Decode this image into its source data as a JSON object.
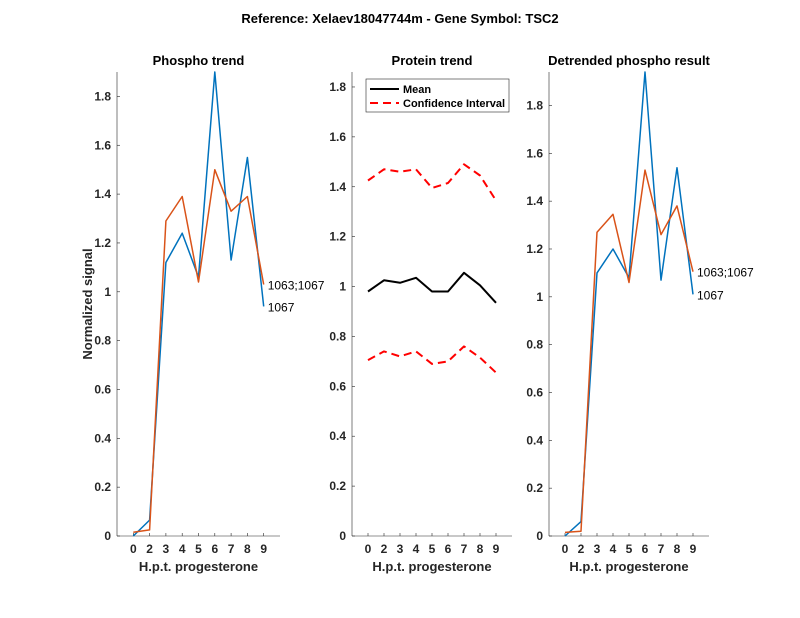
{
  "figure_title": "Reference:  Xelaev18047744m - Gene Symbol:  TSC2",
  "colors": {
    "blue": "#0072BD",
    "orange": "#D95319",
    "mean": "#000000",
    "ci": "#FF0000",
    "axis": "#262626"
  },
  "chart_data": [
    {
      "type": "line",
      "title": "Phospho trend",
      "xlabel": "H.p.t. progesterone",
      "ylabel": "Normalized signal",
      "categories": [
        "0",
        "2",
        "3",
        "4",
        "5",
        "6",
        "7",
        "8",
        "9"
      ],
      "ylim": [
        0,
        1.9
      ],
      "yticks": [
        "0",
        "0.2",
        "0.4",
        "0.6",
        "0.8",
        "1",
        "1.2",
        "1.4",
        "1.6",
        "1.8"
      ],
      "grid": false,
      "series": [
        {
          "name": "1067",
          "color": "blue",
          "values": [
            0,
            0.065,
            1.12,
            1.24,
            1.06,
            1.9,
            1.13,
            1.55,
            0.94
          ]
        },
        {
          "name": "1063;1067",
          "color": "orange",
          "values": [
            0.015,
            0.025,
            1.29,
            1.39,
            1.04,
            1.5,
            1.33,
            1.39,
            1.03
          ]
        }
      ]
    },
    {
      "type": "line",
      "title": "Protein trend",
      "xlabel": "H.p.t. progesterone",
      "ylabel": "",
      "categories": [
        "0",
        "2",
        "3",
        "4",
        "5",
        "6",
        "7",
        "8",
        "9"
      ],
      "ylim": [
        0,
        1.86
      ],
      "yticks": [
        "0",
        "0.2",
        "0.4",
        "0.6",
        "0.8",
        "1",
        "1.2",
        "1.4",
        "1.6",
        "1.8"
      ],
      "grid": false,
      "legend": {
        "placement": "top-left",
        "entries": [
          "Mean",
          "Confidence Interval"
        ]
      },
      "series": [
        {
          "name": "Mean",
          "color": "mean",
          "style": "solid",
          "values": [
            0.98,
            1.025,
            1.015,
            1.035,
            0.98,
            0.98,
            1.055,
            1.005,
            0.935
          ]
        },
        {
          "name": "Confidence Interval",
          "color": "ci",
          "style": "dashed",
          "values": [
            1.425,
            1.47,
            1.46,
            1.47,
            1.395,
            1.415,
            1.49,
            1.445,
            1.345
          ]
        },
        {
          "name": "Confidence Interval",
          "color": "ci",
          "style": "dashed",
          "legend": false,
          "values": [
            0.705,
            0.74,
            0.72,
            0.74,
            0.69,
            0.7,
            0.76,
            0.715,
            0.655
          ]
        }
      ]
    },
    {
      "type": "line",
      "title": "Detrended phospho result",
      "xlabel": "H.p.t. progesterone",
      "ylabel": "",
      "categories": [
        "0",
        "2",
        "3",
        "4",
        "5",
        "6",
        "7",
        "8",
        "9"
      ],
      "ylim": [
        0,
        1.94
      ],
      "yticks": [
        "0",
        "0.2",
        "0.4",
        "0.6",
        "0.8",
        "1",
        "1.2",
        "1.4",
        "1.6",
        "1.8"
      ],
      "grid": false,
      "series": [
        {
          "name": "1067",
          "color": "blue",
          "values": [
            0,
            0.06,
            1.1,
            1.2,
            1.08,
            1.94,
            1.07,
            1.54,
            1.01
          ]
        },
        {
          "name": "1063;1067",
          "color": "orange",
          "values": [
            0.015,
            0.02,
            1.27,
            1.345,
            1.06,
            1.53,
            1.26,
            1.38,
            1.105
          ]
        }
      ]
    }
  ]
}
